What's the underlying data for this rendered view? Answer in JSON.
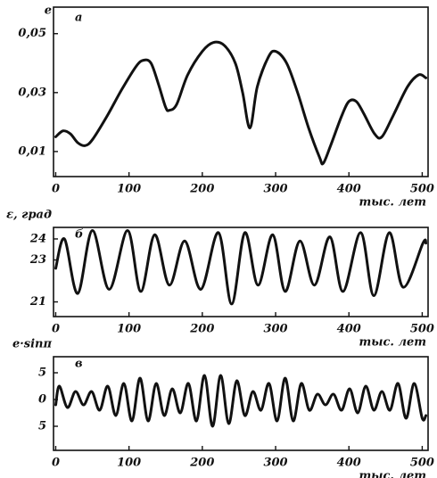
{
  "chart_data": [
    {
      "type": "line",
      "panel_label": "а",
      "ylabel": "e",
      "xlabel": "тыс. лет",
      "x": [
        0,
        10,
        20,
        30,
        40,
        50,
        70,
        90,
        110,
        120,
        130,
        140,
        150,
        155,
        165,
        180,
        200,
        215,
        230,
        245,
        255,
        265,
        275,
        290,
        300,
        315,
        330,
        345,
        360,
        365,
        375,
        390,
        400,
        410,
        420,
        435,
        445,
        460,
        480,
        495,
        505
      ],
      "series": [
        {
          "color": "#111111",
          "values": [
            0.015,
            0.017,
            0.016,
            0.013,
            0.012,
            0.014,
            0.022,
            0.031,
            0.039,
            0.041,
            0.04,
            0.033,
            0.025,
            0.024,
            0.026,
            0.036,
            0.044,
            0.047,
            0.046,
            0.04,
            0.03,
            0.018,
            0.032,
            0.042,
            0.044,
            0.04,
            0.03,
            0.018,
            0.008,
            0.006,
            0.012,
            0.022,
            0.027,
            0.027,
            0.023,
            0.016,
            0.015,
            0.022,
            0.032,
            0.036,
            0.035
          ]
        }
      ],
      "xlim": [
        -3,
        508
      ],
      "xticks": [
        0,
        100,
        200,
        300,
        400,
        500
      ],
      "ylim": [
        0.0015,
        0.059
      ],
      "yticks": [
        {
          "value": 0.05,
          "label": "0,05"
        },
        {
          "value": 0.03,
          "label": "0,03"
        },
        {
          "value": 0.01,
          "label": "0,01"
        }
      ],
      "grid": false
    },
    {
      "type": "line",
      "panel_label": "б",
      "ylabel": "ε, град",
      "xlabel": "тыс. лет",
      "x": [
        0,
        12,
        30,
        50,
        73,
        98,
        116,
        135,
        155,
        176,
        198,
        222,
        240,
        258,
        276,
        296,
        313,
        333,
        353,
        374,
        392,
        416,
        434,
        455,
        474,
        501,
        505
      ],
      "series": [
        {
          "color": "#111111",
          "values": [
            22.6,
            24.0,
            21.4,
            24.4,
            21.6,
            24.4,
            21.5,
            24.2,
            21.8,
            23.9,
            21.6,
            24.3,
            20.9,
            24.3,
            21.8,
            24.2,
            21.5,
            23.9,
            21.8,
            24.1,
            21.5,
            24.3,
            21.3,
            24.3,
            21.7,
            23.8,
            23.8
          ]
        }
      ],
      "xlim": [
        -3,
        508
      ],
      "xticks": [
        0,
        100,
        200,
        300,
        400,
        500
      ],
      "ylim": [
        20.3,
        24.55
      ],
      "yticks": [
        24,
        23,
        21
      ],
      "grid": false
    },
    {
      "type": "line",
      "panel_label": "в",
      "ylabel": "e·sinπ",
      "xlabel": "тыс. лет",
      "x": [
        0,
        5,
        16,
        27,
        38,
        49,
        60,
        71,
        82,
        93,
        104,
        115,
        126,
        137,
        148,
        159,
        170,
        181,
        192,
        203,
        214,
        225,
        236,
        247,
        258,
        269,
        280,
        291,
        302,
        313,
        324,
        335,
        346,
        357,
        368,
        379,
        390,
        401,
        412,
        423,
        434,
        445,
        456,
        467,
        478,
        489,
        500,
        505
      ],
      "series": [
        {
          "color": "#111111",
          "values": [
            -1,
            2.5,
            -1.5,
            1.5,
            -1,
            1.5,
            -2,
            2.5,
            -3,
            3,
            -4,
            4,
            -4,
            3,
            -3,
            2,
            -2.5,
            3,
            -4,
            4.5,
            -5,
            4.5,
            -4.5,
            3.5,
            -3,
            1.5,
            -2,
            3,
            -4,
            4,
            -4,
            3,
            -2,
            1,
            -1,
            1,
            -2,
            2,
            -2.5,
            2.5,
            -2,
            1.5,
            -2,
            3,
            -3.5,
            3,
            -3.5,
            -3
          ]
        }
      ],
      "xlim": [
        -3,
        508
      ],
      "xticks": [
        0,
        100,
        200,
        300,
        400,
        500
      ],
      "ylim": [
        -9.5,
        8
      ],
      "yticks": [
        5,
        0,
        {
          "value": -5,
          "label": "5"
        }
      ],
      "grid": false
    }
  ]
}
